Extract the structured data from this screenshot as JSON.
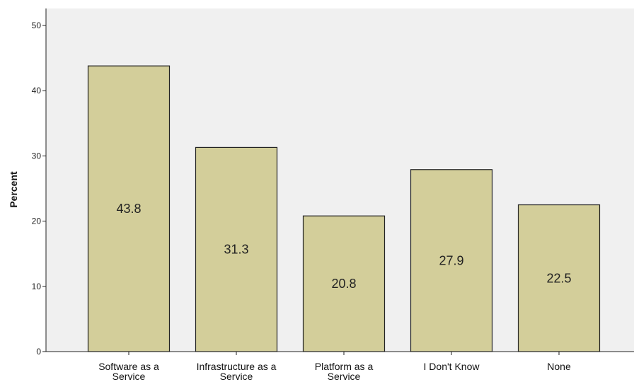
{
  "chart_data": {
    "type": "bar",
    "categories": [
      [
        "Software as a",
        "Service"
      ],
      [
        "Infrastructure as a",
        "Service"
      ],
      [
        "Platform as a",
        "Service"
      ],
      [
        "I Don't Know"
      ],
      [
        "None"
      ]
    ],
    "values": [
      43.8,
      31.3,
      20.8,
      27.9,
      22.5
    ],
    "data_labels": [
      "43.8",
      "31.3",
      "20.8",
      "27.9",
      "22.5"
    ],
    "title": "",
    "xlabel": "",
    "ylabel": "Percent",
    "ylim": [
      0,
      50
    ],
    "yticks": [
      0,
      10,
      20,
      30,
      40,
      50
    ],
    "grid": false,
    "colors": {
      "plot_background": "#f0f0f0",
      "bar_fill": "#d3ce9a",
      "bar_stroke": "#222222",
      "axis": "#222222"
    }
  }
}
